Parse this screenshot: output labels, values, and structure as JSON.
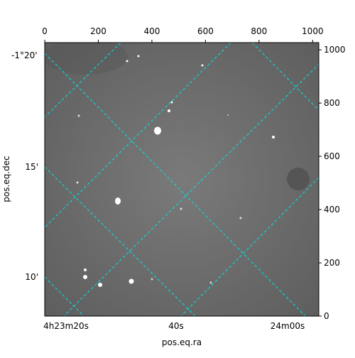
{
  "chart_data": {
    "type": "image",
    "xlabel": "pos.eq.ra",
    "ylabel": "pos.eq.dec",
    "ra_tick_labels": [
      "4h23m20s",
      "40s",
      "24m00s"
    ],
    "dec_tick_labels": [
      "-1°20'",
      "15'",
      "10'"
    ],
    "xlim": [
      0,
      1023
    ],
    "xticks": [
      0,
      200,
      400,
      600,
      800,
      1000
    ],
    "ylim": [
      0,
      1027
    ],
    "yticks": [
      0,
      200,
      400,
      600,
      800,
      1000
    ],
    "grid_color": "#00e5e5"
  }
}
